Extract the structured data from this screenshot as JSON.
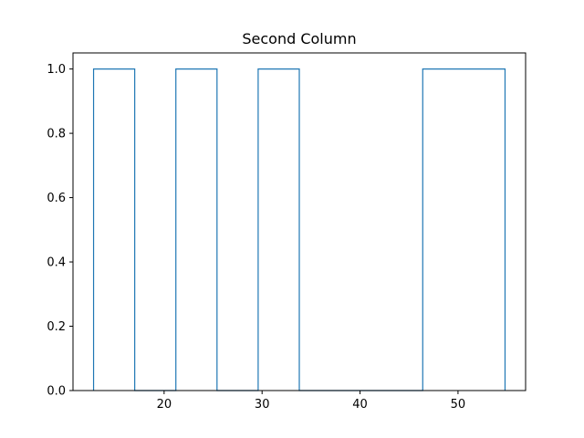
{
  "chart_data": {
    "type": "bar",
    "histtype": "step",
    "title": "Second Column",
    "xlabel": "",
    "ylabel": "",
    "bins": [
      {
        "x0": 12.8,
        "x1": 17.0,
        "count": 1
      },
      {
        "x0": 17.0,
        "x1": 21.2,
        "count": 0
      },
      {
        "x0": 21.2,
        "x1": 25.4,
        "count": 1
      },
      {
        "x0": 25.4,
        "x1": 29.6,
        "count": 0
      },
      {
        "x0": 29.6,
        "x1": 33.8,
        "count": 1
      },
      {
        "x0": 33.8,
        "x1": 38.0,
        "count": 0
      },
      {
        "x0": 38.0,
        "x1": 42.2,
        "count": 0
      },
      {
        "x0": 42.2,
        "x1": 46.4,
        "count": 0
      },
      {
        "x0": 46.4,
        "x1": 50.6,
        "count": 1
      },
      {
        "x0": 50.6,
        "x1": 54.8,
        "count": 1
      }
    ],
    "xlim": [
      10.7,
      56.9
    ],
    "ylim": [
      0,
      1.05
    ],
    "xticks": [
      20,
      30,
      40,
      50
    ],
    "xtick_labels": [
      "20",
      "30",
      "40",
      "50"
    ],
    "yticks": [
      0.0,
      0.2,
      0.4,
      0.6,
      0.8,
      1.0
    ],
    "ytick_labels": [
      "0.0",
      "0.2",
      "0.4",
      "0.6",
      "0.8",
      "1.0"
    ],
    "grid": false,
    "legend": "none",
    "colors": {
      "series": "#1f77b4",
      "axes": "#000000",
      "background": "#ffffff"
    }
  }
}
